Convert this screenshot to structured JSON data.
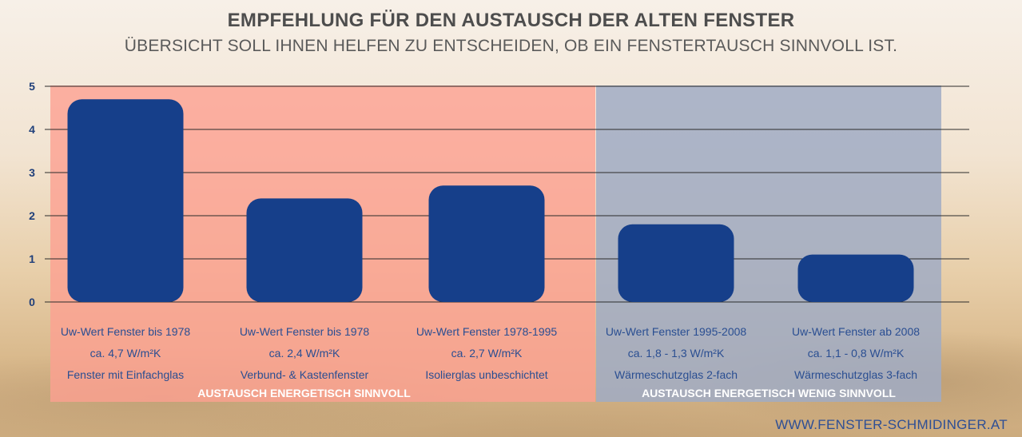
{
  "header": {
    "title": "EMPFEHLUNG FÜR DEN AUSTAUSCH DER ALTEN FENSTER",
    "subtitle": "ÜBERSICHT SOLL IHNEN HELFEN ZU ENTSCHEIDEN, OB EIN FENSTERTAUSCH SINNVOLL IST."
  },
  "zones": {
    "left_label": "AUSTAUSCH ENERGETISCH SINNVOLL",
    "right_label": "AUSTAUSCH ENERGETISCH WENIG SINNVOLL"
  },
  "footer": {
    "website": "WWW.FENSTER-SCHMIDINGER.AT"
  },
  "colors": {
    "bar": "#163f8a",
    "axis_text": "#1f3f7a",
    "label_text": "#2a4e92",
    "zone_good": "#fca091",
    "zone_bad": "#a0acc4"
  },
  "chart_data": {
    "type": "bar",
    "categories": [
      [
        "Uw-Wert Fenster bis 1978",
        "ca. 4,7 W/m²K",
        "Fenster mit Einfachglas"
      ],
      [
        "Uw-Wert Fenster bis 1978",
        "ca. 2,4 W/m²K",
        "Verbund- & Kastenfenster"
      ],
      [
        "Uw-Wert Fenster 1978-1995",
        "ca. 2,7 W/m²K",
        "Isolierglas unbeschichtet"
      ],
      [
        "Uw-Wert Fenster 1995-2008",
        "ca. 1,8 - 1,3 W/m²K",
        "Wärmeschutzglas 2-fach"
      ],
      [
        "Uw-Wert Fenster ab 2008",
        "ca. 1,1 - 0,8 W/m²K",
        "Wärmeschutzglas 3-fach"
      ]
    ],
    "values": [
      4.7,
      2.4,
      2.7,
      1.8,
      1.1
    ],
    "yticks": [
      0,
      1,
      2,
      3,
      4,
      5
    ],
    "ylim": [
      0,
      5
    ],
    "grid": true
  }
}
